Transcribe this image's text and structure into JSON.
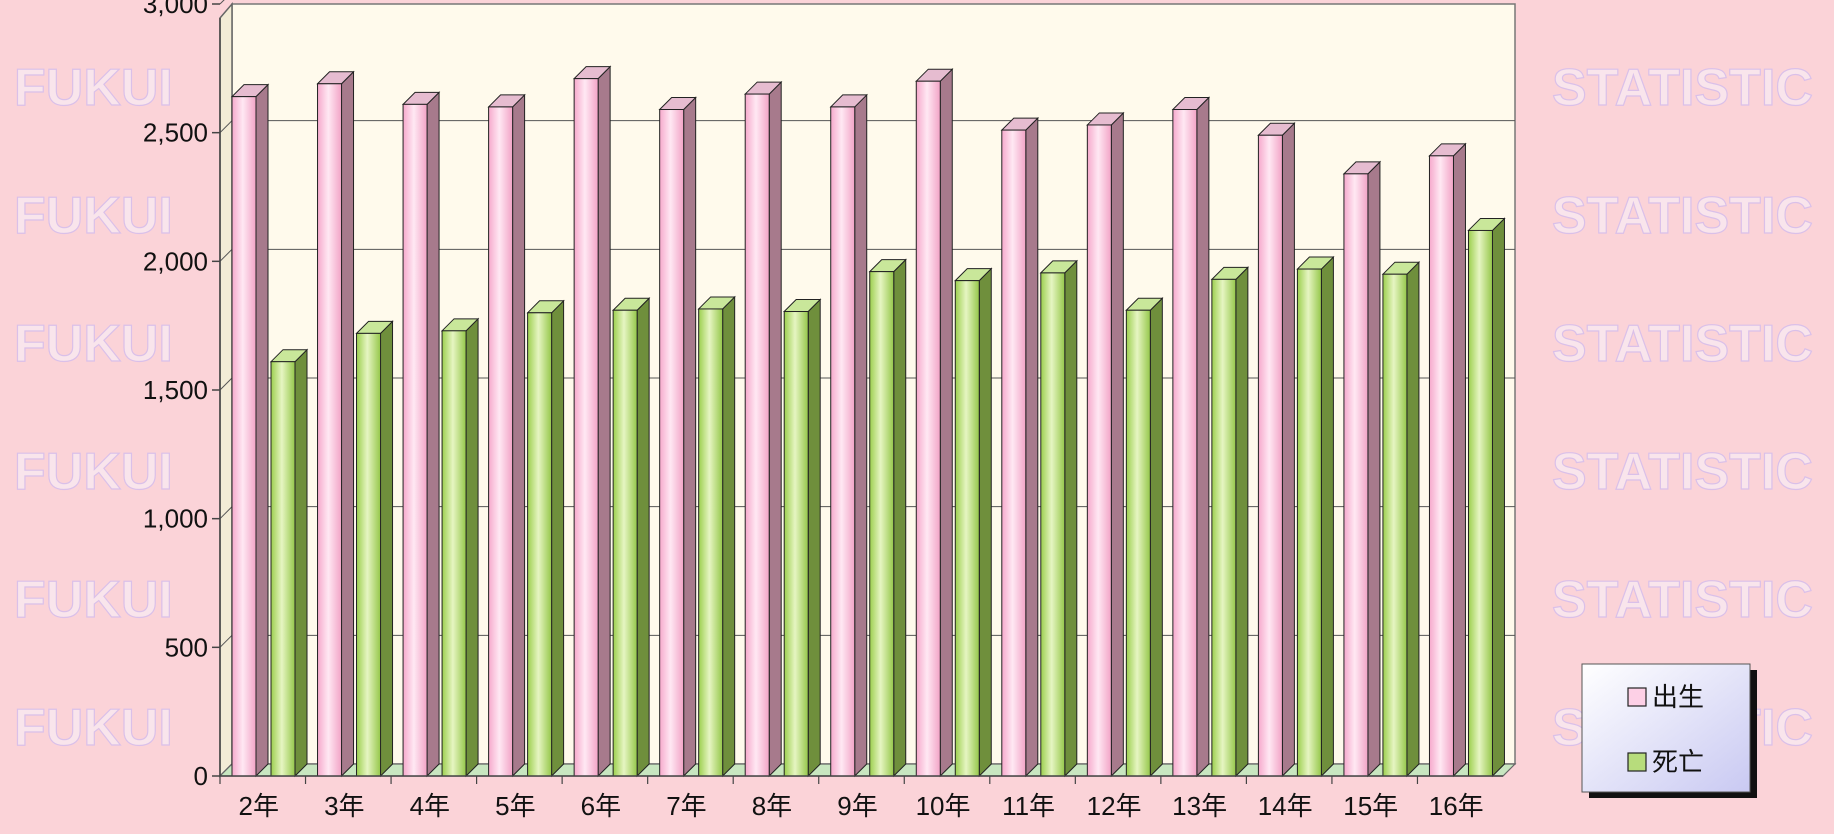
{
  "watermark": {
    "left_text": "FUKUI",
    "right_text": "STATISTIC"
  },
  "colors": {
    "background": "#fbd3d8",
    "plot_bg": "#fffaec",
    "birth_front": "#fdd0e6",
    "birth_side": "#a77a8c",
    "birth_top": "#e6bcd0",
    "death_front": "#b7dc7c",
    "death_side": "#6f8f3c",
    "death_top": "#c9e79a",
    "floor": "#c8e6c0"
  },
  "chart_data": {
    "type": "bar",
    "title": "",
    "xlabel": "",
    "ylabel": "",
    "categories": [
      "2年",
      "3年",
      "4年",
      "5年",
      "6年",
      "7年",
      "8年",
      "9年",
      "10年",
      "11年",
      "12年",
      "13年",
      "14年",
      "15年",
      "16年"
    ],
    "series": [
      {
        "name": "出生",
        "values": [
          2640,
          2690,
          2610,
          2600,
          2710,
          2590,
          2650,
          2600,
          2700,
          2510,
          2530,
          2590,
          2490,
          2340,
          2410
        ]
      },
      {
        "name": "死亡",
        "values": [
          1610,
          1720,
          1730,
          1800,
          1810,
          1815,
          1805,
          1960,
          1925,
          1955,
          1810,
          1930,
          1970,
          1950,
          2120
        ]
      }
    ],
    "ylim": [
      0,
      3000
    ],
    "yticks": [
      "0",
      "500",
      "1,000",
      "1,500",
      "2,000",
      "2,500",
      "3,000"
    ],
    "ytick_values": [
      0,
      500,
      1000,
      1500,
      2000,
      2500,
      3000
    ],
    "grid": true,
    "legend_position": "bottom-right"
  }
}
